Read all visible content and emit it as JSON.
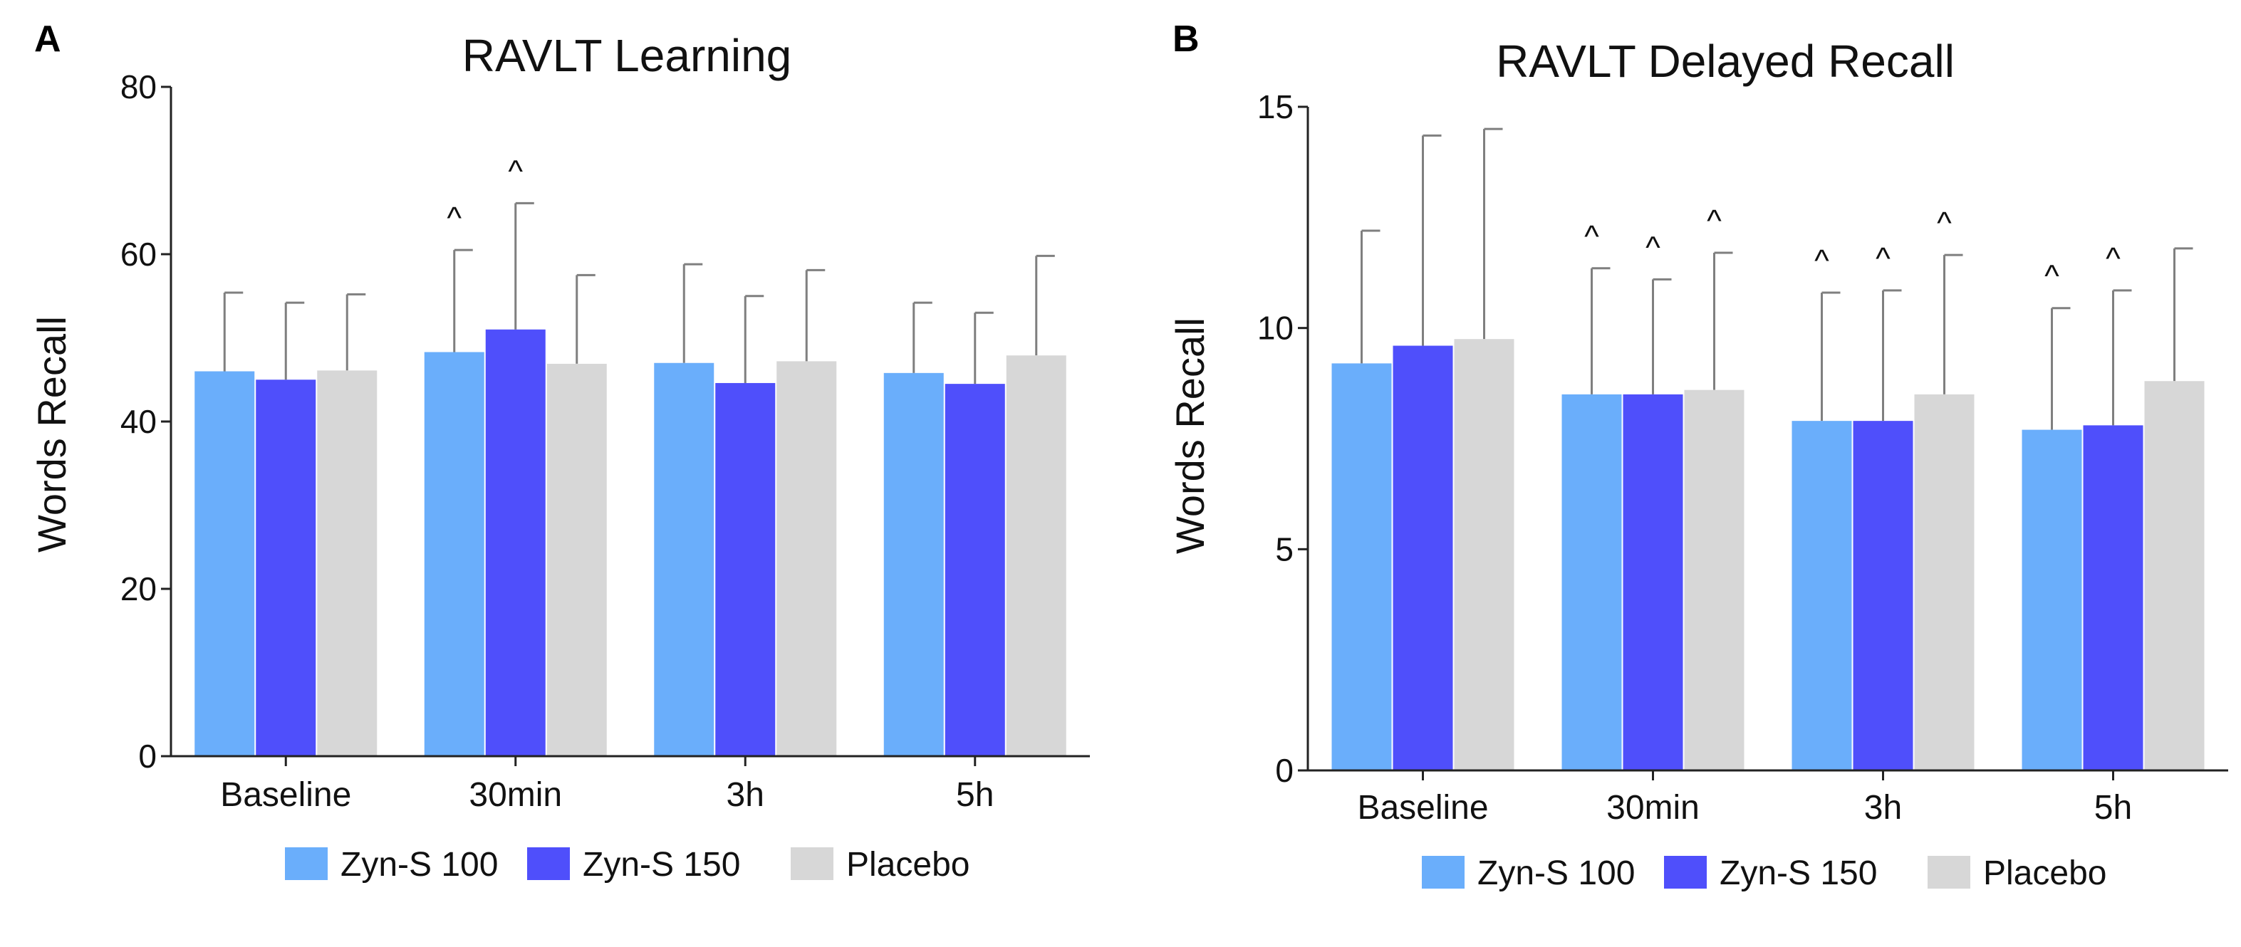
{
  "chart_data": [
    {
      "panel": "A",
      "type": "bar",
      "title": "RAVLT Learning",
      "xlabel": "",
      "ylabel": "Words Recall",
      "ylim": [
        0,
        80
      ],
      "yticks": [
        0,
        20,
        40,
        60,
        80
      ],
      "categories": [
        "Baseline",
        "30min",
        "3h",
        "5h"
      ],
      "series": [
        {
          "name": "Zyn-S 100",
          "color": "#6aaefb",
          "values": [
            46.0,
            48.3,
            47.0,
            45.8
          ],
          "errors": [
            9.4,
            12.2,
            11.8,
            8.4
          ]
        },
        {
          "name": "Zyn-S 150",
          "color": "#4f4ffb",
          "values": [
            45.0,
            51.0,
            44.6,
            44.5
          ],
          "errors": [
            9.2,
            15.1,
            10.4,
            8.5
          ]
        },
        {
          "name": "Placebo",
          "color": "#d7d7d7",
          "values": [
            46.1,
            46.9,
            47.2,
            47.9
          ],
          "errors": [
            9.1,
            10.6,
            10.9,
            11.9
          ]
        }
      ],
      "annotations": [
        {
          "category": "30min",
          "series": "Zyn-S 100",
          "text": "^"
        },
        {
          "category": "30min",
          "series": "Zyn-S 150",
          "text": "^"
        }
      ]
    },
    {
      "panel": "B",
      "type": "bar",
      "title": "RAVLT Delayed Recall",
      "xlabel": "",
      "ylabel": "Words Recall",
      "ylim": [
        0,
        15
      ],
      "yticks": [
        0,
        5,
        10,
        15
      ],
      "categories": [
        "Baseline",
        "30min",
        "3h",
        "5h"
      ],
      "series": [
        {
          "name": "Zyn-S 100",
          "color": "#6aaefb",
          "values": [
            9.2,
            8.5,
            7.9,
            7.7
          ],
          "errors": [
            3.0,
            2.85,
            2.9,
            2.75
          ]
        },
        {
          "name": "Zyn-S 150",
          "color": "#4f4ffb",
          "values": [
            9.6,
            8.5,
            7.9,
            7.8
          ],
          "errors": [
            4.75,
            2.6,
            2.95,
            3.05
          ]
        },
        {
          "name": "Placebo",
          "color": "#d7d7d7",
          "values": [
            9.75,
            8.6,
            8.5,
            8.8
          ],
          "errors": [
            4.75,
            3.1,
            3.15,
            3.0
          ]
        }
      ],
      "annotations": [
        {
          "category": "30min",
          "series": "Zyn-S 100",
          "text": "^"
        },
        {
          "category": "30min",
          "series": "Zyn-S 150",
          "text": "^"
        },
        {
          "category": "30min",
          "series": "Placebo",
          "text": "^"
        },
        {
          "category": "3h",
          "series": "Zyn-S 100",
          "text": "^"
        },
        {
          "category": "3h",
          "series": "Zyn-S 150",
          "text": "^"
        },
        {
          "category": "3h",
          "series": "Placebo",
          "text": "^"
        },
        {
          "category": "5h",
          "series": "Zyn-S 100",
          "text": "^"
        },
        {
          "category": "5h",
          "series": "Zyn-S 150",
          "text": "^"
        }
      ]
    }
  ]
}
